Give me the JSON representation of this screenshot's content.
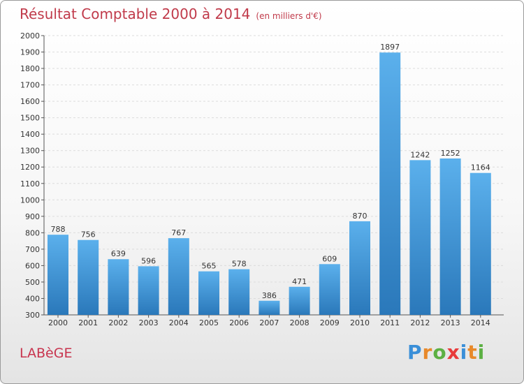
{
  "header": {
    "title": "Résultat Comptable 2000 à 2014",
    "subtitle": "(en milliers d'€)"
  },
  "footer": {
    "commune": "LABèGE",
    "brand_letters": [
      "P",
      "r",
      "o",
      "x",
      "i",
      "t",
      "i"
    ],
    "brand_colors": [
      "#3a8fd8",
      "#e8892a",
      "#5cb043",
      "#e83b3b",
      "#3a8fd8",
      "#e8892a",
      "#5cb043"
    ]
  },
  "chart_data": {
    "type": "bar",
    "categories": [
      "2000",
      "2001",
      "2002",
      "2003",
      "2004",
      "2005",
      "2006",
      "2007",
      "2008",
      "2009",
      "2010",
      "2011",
      "2012",
      "2013",
      "2014"
    ],
    "values": [
      788,
      756,
      639,
      596,
      767,
      565,
      578,
      386,
      471,
      609,
      870,
      1897,
      1242,
      1252,
      1164
    ],
    "ylim": [
      300,
      2000
    ],
    "yticks": [
      300,
      400,
      500,
      600,
      700,
      800,
      900,
      1000,
      1100,
      1200,
      1300,
      1400,
      1500,
      1600,
      1700,
      1800,
      1900,
      2000
    ],
    "grid": true,
    "bar_color": "#3a8fd8",
    "title": "Résultat Comptable 2000 à 2014"
  }
}
